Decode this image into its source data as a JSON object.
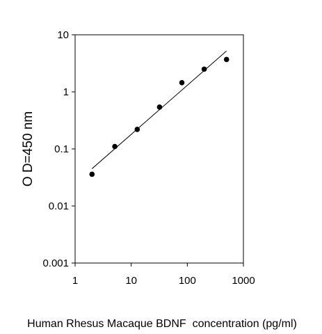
{
  "chart_data": {
    "type": "scatter",
    "title": "",
    "xlabel": "Human Rhesus Macaque BDNF  concentration (pg/ml)",
    "ylabel": "O D=450 nm",
    "x_scale": "log",
    "y_scale": "log",
    "xlim": [
      1,
      1000
    ],
    "ylim": [
      0.001,
      10
    ],
    "x_ticks": [
      1,
      10,
      100,
      1000
    ],
    "x_tick_labels": [
      "1",
      "10",
      "100",
      "1000"
    ],
    "y_ticks": [
      0.001,
      0.01,
      0.1,
      1,
      10
    ],
    "y_tick_labels": [
      "0.001",
      "0.01",
      "0.1",
      "1",
      "10"
    ],
    "grid": false,
    "legend": "none",
    "series": [
      {
        "marker": "circle",
        "color": "#000000",
        "x": [
          2.0,
          5.1,
          12.8,
          32,
          80,
          200,
          500
        ],
        "y": [
          0.036,
          0.11,
          0.22,
          0.54,
          1.45,
          2.5,
          3.7
        ]
      }
    ],
    "trendline": {
      "color": "#000000",
      "x": [
        2.0,
        500
      ],
      "y": [
        0.045,
        5.2
      ]
    }
  }
}
